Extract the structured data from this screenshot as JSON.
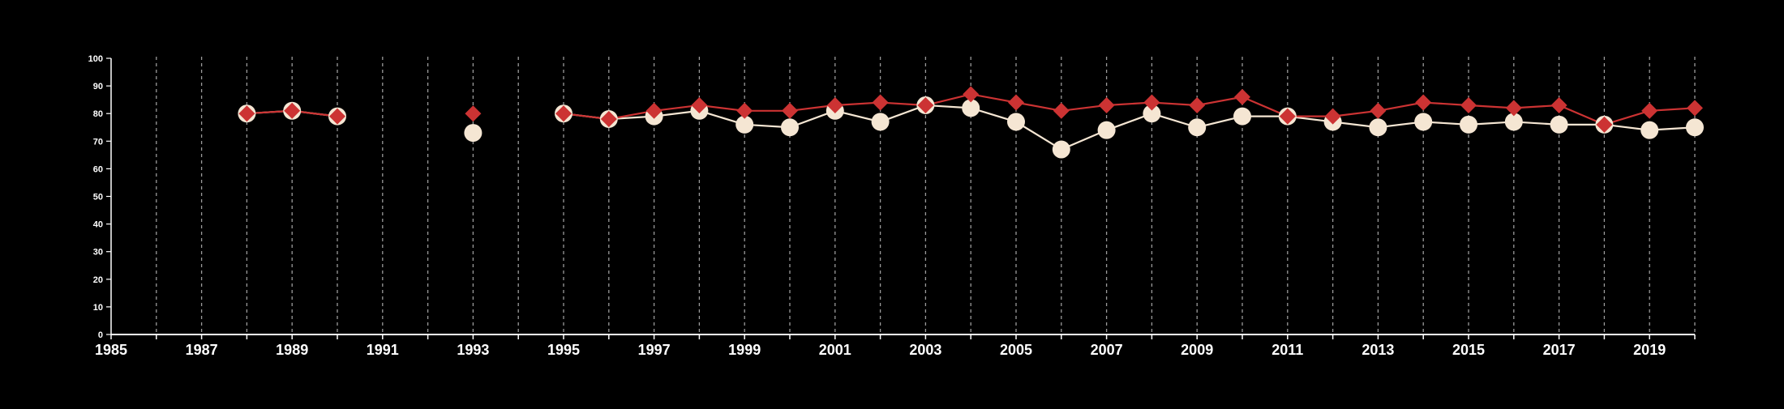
{
  "chart_data": {
    "type": "line",
    "x": [
      1988,
      1989,
      1990,
      1993,
      1995,
      1996,
      1997,
      1998,
      1999,
      2000,
      2001,
      2002,
      2003,
      2004,
      2005,
      2006,
      2007,
      2008,
      2009,
      2010,
      2011,
      2012,
      2013,
      2014,
      2015,
      2016,
      2017,
      2018,
      2019,
      2020
    ],
    "series": [
      {
        "values": [
          80,
          81,
          79,
          73,
          80,
          78,
          79,
          81,
          76,
          75,
          81,
          77,
          83,
          82,
          77,
          67,
          74,
          80,
          75,
          79,
          79,
          77,
          75,
          77,
          76,
          77,
          76,
          76,
          74,
          75
        ],
        "color": "#f5e6d3",
        "marker": "circle"
      },
      {
        "values": [
          80,
          81,
          79,
          80,
          80,
          78,
          81,
          83,
          81,
          81,
          83,
          84,
          83,
          87,
          84,
          81,
          83,
          84,
          83,
          86,
          79,
          79,
          81,
          84,
          83,
          82,
          83,
          76,
          81,
          82
        ],
        "color": "#cc3333",
        "marker": "diamond"
      }
    ],
    "xlim": [
      1985,
      2020
    ],
    "ylim": [
      0,
      100
    ],
    "yticks": [
      0,
      10,
      20,
      30,
      40,
      50,
      60,
      70,
      80,
      90,
      100
    ],
    "xtick_labels": [
      "1985",
      "1987",
      "1989",
      "1991",
      "1993",
      "1995",
      "1997",
      "1999",
      "2001",
      "2003",
      "2005",
      "2007",
      "2009",
      "2011",
      "2013",
      "2015",
      "2017",
      "2019"
    ],
    "gap_after_years": [
      1990,
      1993
    ],
    "vertical_gridlines": "dashed, every year",
    "horizontal_grid": false,
    "legend": false,
    "background_color": "#000000",
    "axis_color": "#ffffff",
    "title": "",
    "xlabel": "",
    "ylabel": ""
  }
}
